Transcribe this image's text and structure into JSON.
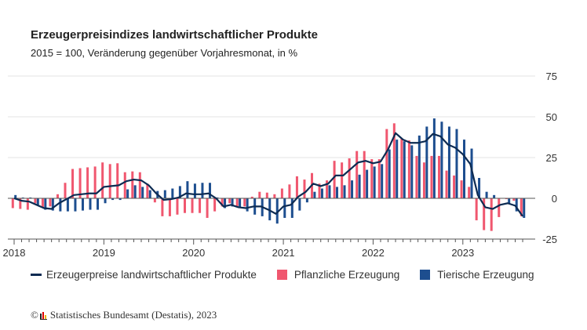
{
  "chart_data": {
    "type": "bar",
    "title": "Erzeugerpreisindizes landwirtschaftlicher Produkte",
    "subtitle": "2015 = 100, Veränderung gegenüber Vorjahresmonat, in %",
    "x_start": "2018-01",
    "x_end": "2023-09",
    "x_tick_labels": [
      "2018",
      "2019",
      "2020",
      "2021",
      "2022",
      "2023"
    ],
    "y_ticks": [
      75,
      50,
      25,
      0,
      -25
    ],
    "ylim": [
      -25,
      75
    ],
    "y_axis_side": "right",
    "grid": true,
    "legend_position": "bottom",
    "series": [
      {
        "name": "Erzeugerpreise landwirtschaftlicher Produkte",
        "kind": "line",
        "color": "#0d2b52",
        "values": [
          0,
          -1.5,
          -2,
          -4,
          -6,
          -6.5,
          -3,
          -0.5,
          2,
          2.5,
          3,
          3,
          7,
          7.5,
          8,
          10.5,
          11.5,
          11,
          8,
          3,
          -1,
          -0.5,
          0.5,
          3,
          2.5,
          2.5,
          3,
          0,
          -5,
          -4,
          -5.5,
          -6,
          -5,
          -5,
          -7,
          -9.5,
          -5,
          -4,
          1,
          4,
          9,
          7.5,
          9,
          14,
          14,
          18,
          22,
          23,
          21.5,
          22.5,
          30,
          40,
          36,
          34,
          34,
          35,
          39.5,
          38,
          33,
          31,
          27,
          21,
          2,
          -5.5,
          -6.5,
          -4,
          -3,
          -4.5,
          -11
        ]
      },
      {
        "name": "Pflanzliche Erzeugung",
        "kind": "bar",
        "color": "#f0576f",
        "values": [
          -6,
          -6.5,
          -7,
          -3,
          -5.5,
          -5,
          2.5,
          9.5,
          18,
          18.5,
          19,
          19.5,
          22,
          21,
          21.5,
          16,
          16.5,
          16,
          9,
          -2.5,
          -11,
          -11,
          -10,
          -9,
          -9,
          -9,
          -12,
          -8,
          -5,
          -3,
          -5,
          -5,
          1,
          4,
          3.5,
          2.5,
          6,
          8.5,
          13.5,
          11.5,
          15.5,
          9,
          11,
          23,
          22,
          24.5,
          29,
          29,
          24,
          24,
          42.5,
          46,
          36.5,
          35.5,
          26,
          22,
          26,
          26,
          17,
          14,
          11,
          7,
          -13.5,
          -19.5,
          -20,
          -11.5,
          -0.5,
          -1.5,
          -11
        ]
      },
      {
        "name": "Tierische Erzeugung",
        "kind": "bar",
        "color": "#1d4e8f",
        "values": [
          2,
          0.5,
          0.5,
          -4,
          -7,
          -7.5,
          -8,
          -8,
          -8,
          -7.5,
          -7,
          -7,
          -3,
          -1,
          -1,
          5.5,
          8,
          7,
          5,
          4.5,
          5,
          6,
          7.5,
          10.5,
          9,
          9.5,
          9.5,
          0.5,
          -6,
          -5,
          -6,
          -8,
          -10,
          -11,
          -13.5,
          -15.5,
          -12,
          -12,
          -7.5,
          -2.5,
          4,
          6,
          8,
          7,
          8,
          11,
          14.5,
          17.5,
          19.5,
          21,
          30,
          36,
          35,
          32.5,
          38.5,
          44,
          49,
          47,
          44,
          42.5,
          36,
          30.5,
          12.5,
          4,
          2,
          0,
          -3.5,
          -8,
          -12
        ]
      }
    ]
  },
  "footer": {
    "copyright": "©",
    "source": "Statistisches Bundesamt (Destatis), 2023"
  }
}
